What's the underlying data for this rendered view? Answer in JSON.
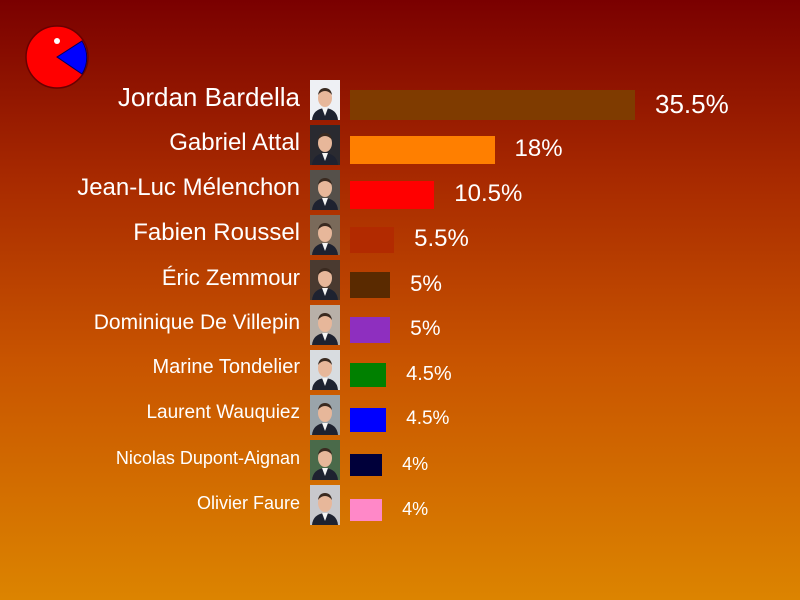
{
  "chart_data": {
    "type": "bar",
    "orientation": "horizontal",
    "categories": [
      "Jordan Bardella",
      "Gabriel Attal",
      "Jean-Luc Mélenchon",
      "Fabien Roussel",
      "Éric Zemmour",
      "Dominique De Villepin",
      "Marine Tondelier",
      "Laurent Wauquiez",
      "Nicolas Dupont-Aignan",
      "Olivier Faure"
    ],
    "values": [
      35.5,
      18,
      10.5,
      5.5,
      5,
      5,
      4.5,
      4.5,
      4,
      4
    ],
    "value_labels": [
      "35.5%",
      "18%",
      "10.5%",
      "5.5%",
      "5%",
      "5%",
      "4.5%",
      "4.5%",
      "4%",
      "4%"
    ],
    "colors": [
      "#7f3b00",
      "#ff7f00",
      "#ff0000",
      "#b22a00",
      "#5a2a00",
      "#8e2fbf",
      "#008000",
      "#0000ff",
      "#00003a",
      "#ff88c8"
    ],
    "photo_backgrounds": [
      "#eef0f4",
      "#2a2a30",
      "#55504a",
      "#7a6a5a",
      "#4a3a30",
      "#b8b0a8",
      "#d8dce0",
      "#9aa4aa",
      "#4a6a4a",
      "#c8c8cc"
    ],
    "title": "",
    "xlabel": "",
    "ylabel": "",
    "xlim": [
      0,
      35.5
    ],
    "grid": false,
    "legend": "none"
  },
  "logo": {
    "name": "pac-man-pie-icon",
    "colors": [
      "#ff0000",
      "#0000ff"
    ]
  }
}
